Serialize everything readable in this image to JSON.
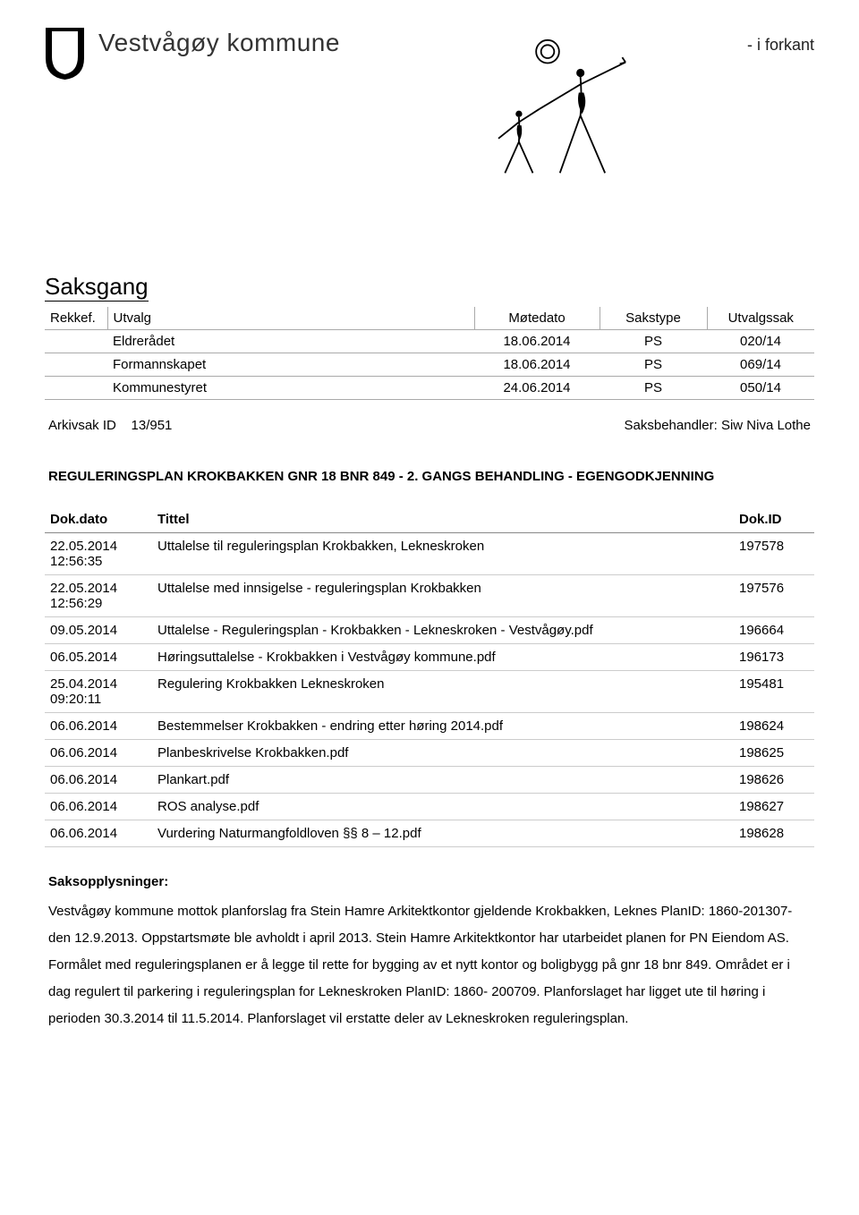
{
  "header": {
    "org_name": "Vestvågøy kommune",
    "tagline": "- i forkant"
  },
  "saksgang": {
    "section_title": "Saksgang",
    "columns": [
      "Rekkef.",
      "Utvalg",
      "Møtedato",
      "Sakstype",
      "Utvalgssak"
    ],
    "rows": [
      {
        "rekkef": "",
        "utvalg": "Eldrerådet",
        "dato": "18.06.2014",
        "type": "PS",
        "sak": "020/14"
      },
      {
        "rekkef": "",
        "utvalg": "Formannskapet",
        "dato": "18.06.2014",
        "type": "PS",
        "sak": "069/14"
      },
      {
        "rekkef": "",
        "utvalg": "Kommunestyret",
        "dato": "24.06.2014",
        "type": "PS",
        "sak": "050/14"
      }
    ]
  },
  "meta": {
    "arkivsak_label": "Arkivsak ID",
    "arkivsak_value": "13/951",
    "saksbehandler_label": "Saksbehandler:",
    "saksbehandler_value": "Siw Niva Lothe"
  },
  "case_title": "REGULERINGSPLAN KROKBAKKEN GNR 18 BNR 849 - 2. GANGS BEHANDLING - EGENGODKJENNING",
  "docs": {
    "columns": [
      "Dok.dato",
      "Tittel",
      "Dok.ID"
    ],
    "rows": [
      {
        "dato": "22.05.2014 12:56:35",
        "tittel": "Uttalelse til reguleringsplan Krokbakken, Lekneskroken",
        "id": "197578"
      },
      {
        "dato": "22.05.2014 12:56:29",
        "tittel": "Uttalelse med innsigelse - reguleringsplan Krokbakken",
        "id": "197576"
      },
      {
        "dato": "09.05.2014",
        "tittel": "Uttalelse - Reguleringsplan - Krokbakken - Lekneskroken - Vestvågøy.pdf",
        "id": "196664"
      },
      {
        "dato": "06.05.2014",
        "tittel": "Høringsuttalelse - Krokbakken i Vestvågøy kommune.pdf",
        "id": "196173"
      },
      {
        "dato": "25.04.2014 09:20:11",
        "tittel": "Regulering Krokbakken Lekneskroken",
        "id": "195481"
      },
      {
        "dato": "06.06.2014",
        "tittel": "Bestemmelser Krokbakken - endring etter høring 2014.pdf",
        "id": "198624"
      },
      {
        "dato": "06.06.2014",
        "tittel": "Planbeskrivelse Krokbakken.pdf",
        "id": "198625"
      },
      {
        "dato": "06.06.2014",
        "tittel": "Plankart.pdf",
        "id": "198626"
      },
      {
        "dato": "06.06.2014",
        "tittel": "ROS analyse.pdf",
        "id": "198627"
      },
      {
        "dato": "06.06.2014",
        "tittel": "Vurdering Naturmangfoldloven §§ 8 – 12.pdf",
        "id": "198628"
      }
    ]
  },
  "body": {
    "heading": "Saksopplysninger:",
    "text": "Vestvågøy kommune mottok planforslag fra Stein Hamre Arkitektkontor gjeldende Krokbakken, Leknes PlanID: 1860-201307- den 12.9.2013. Oppstartsmøte ble avholdt i april 2013. Stein Hamre Arkitektkontor har utarbeidet planen for PN Eiendom AS. Formålet med reguleringsplanen er å legge til rette for bygging av et nytt kontor og boligbygg på gnr 18 bnr 849. Området er i dag regulert til parkering i reguleringsplan for Lekneskroken PlanID: 1860- 200709. Planforslaget har ligget ute til høring i perioden 30.3.2014 til 11.5.2014. Planforslaget vil erstatte deler av Lekneskroken reguleringsplan."
  }
}
